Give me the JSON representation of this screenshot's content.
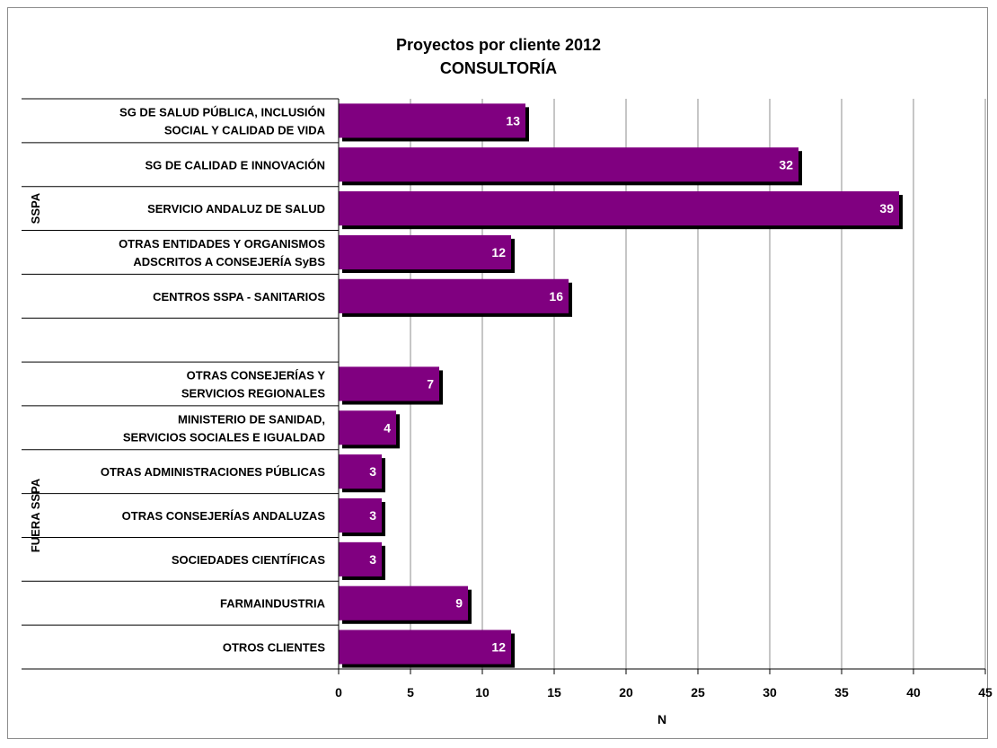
{
  "chart_data": {
    "type": "bar",
    "orientation": "horizontal",
    "title": "Proyectos por cliente 2012",
    "subtitle": "CONSULTORÍA",
    "xlabel": "N",
    "ylabel": "",
    "xlim": [
      0,
      45
    ],
    "x_ticks": [
      0,
      5,
      10,
      15,
      20,
      25,
      30,
      35,
      40,
      45
    ],
    "grid": true,
    "bar_color": "#800080",
    "shadow_color": "#000000",
    "groups": [
      {
        "name": "SSPA",
        "categories": [
          0,
          1,
          2,
          3,
          4
        ]
      },
      {
        "name": "FUERA SSPA",
        "categories": [
          6,
          7,
          8,
          9,
          10,
          11,
          12
        ]
      }
    ],
    "categories": [
      [
        "SG DE SALUD PÚBLICA, INCLUSIÓN",
        "SOCIAL Y CALIDAD DE VIDA"
      ],
      [
        "SG DE CALIDAD E INNOVACIÓN"
      ],
      [
        "SERVICIO ANDALUZ DE SALUD"
      ],
      [
        "OTRAS ENTIDADES Y ORGANISMOS",
        "ADSCRITOS A CONSEJERÍA SyBS"
      ],
      [
        "CENTROS SSPA - SANITARIOS"
      ],
      [],
      [
        "OTRAS CONSEJERÍAS Y",
        "SERVICIOS REGIONALES"
      ],
      [
        "MINISTERIO DE SANIDAD,",
        "SERVICIOS SOCIALES E IGUALDAD"
      ],
      [
        "OTRAS ADMINISTRACIONES PÚBLICAS"
      ],
      [
        "OTRAS CONSEJERÍAS ANDALUZAS"
      ],
      [
        "SOCIEDADES CIENTÍFICAS"
      ],
      [
        "FARMAINDUSTRIA"
      ],
      [
        "OTROS CLIENTES"
      ]
    ],
    "values": [
      13,
      32,
      39,
      12,
      16,
      null,
      7,
      4,
      3,
      3,
      3,
      9,
      12
    ]
  }
}
